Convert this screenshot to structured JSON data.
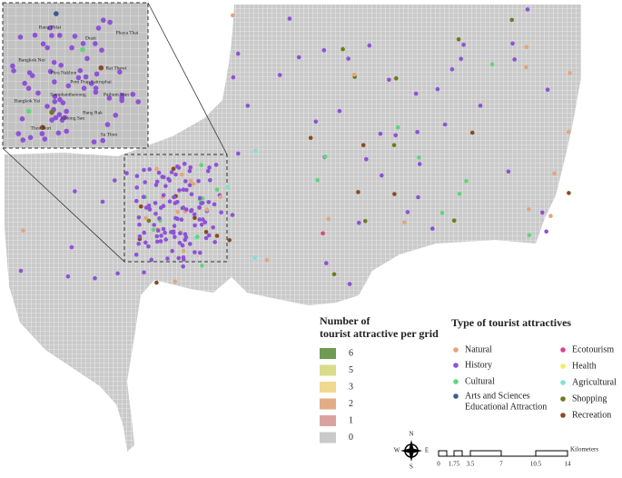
{
  "inset_labels": [
    "Bang Phlat",
    "Dusit",
    "Phaya Thai",
    "Bangkok Noi",
    "Rat Thewi",
    "Phra Nakhon",
    "Pom Prap Sattruphai",
    "Samphanthawong",
    "Pathum Wan",
    "Bangkok Yai",
    "Bang Rak",
    "Khlong San",
    "Thon Buri",
    "Sa Thon"
  ],
  "grid_legend": {
    "title_lines": [
      "Number of",
      "tourist attractive per grid"
    ],
    "items": [
      {
        "label": "6",
        "color": "#6f9a52"
      },
      {
        "label": "5",
        "color": "#d9dc8a"
      },
      {
        "label": "3",
        "color": "#efd98f"
      },
      {
        "label": "2",
        "color": "#e2ad86"
      },
      {
        "label": "1",
        "color": "#dba3a0"
      },
      {
        "label": "0",
        "color": "#c9c9c9"
      }
    ]
  },
  "type_legend": {
    "title": "Type of tourist attractives",
    "items": [
      {
        "lines": [
          "Natural"
        ],
        "color": "#e3a57c"
      },
      {
        "lines": [
          "History"
        ],
        "color": "#8e52d6"
      },
      {
        "lines": [
          "Cultural"
        ],
        "color": "#5fd67a"
      },
      {
        "lines": [
          "Arts and Sciences",
          "Educational Attraction"
        ],
        "color": "#3a5d86"
      },
      {
        "lines": [
          "Ecotourism"
        ],
        "color": "#d9458e"
      },
      {
        "lines": [
          "Health"
        ],
        "color": "#f1ef5a"
      },
      {
        "lines": [
          "Agricultural"
        ],
        "color": "#7fe3d2"
      },
      {
        "lines": [
          "Shopping"
        ],
        "color": "#6f7a1c"
      },
      {
        "lines": [
          "Recreation"
        ],
        "color": "#8a4a22"
      }
    ]
  },
  "scale_bar": {
    "labels": [
      "0",
      "1.75",
      "3.5",
      "7",
      "10.5",
      "14"
    ],
    "unit": "Kilometers"
  },
  "compass": {
    "north": "N",
    "south": "S",
    "west": "W",
    "east": "E"
  }
}
